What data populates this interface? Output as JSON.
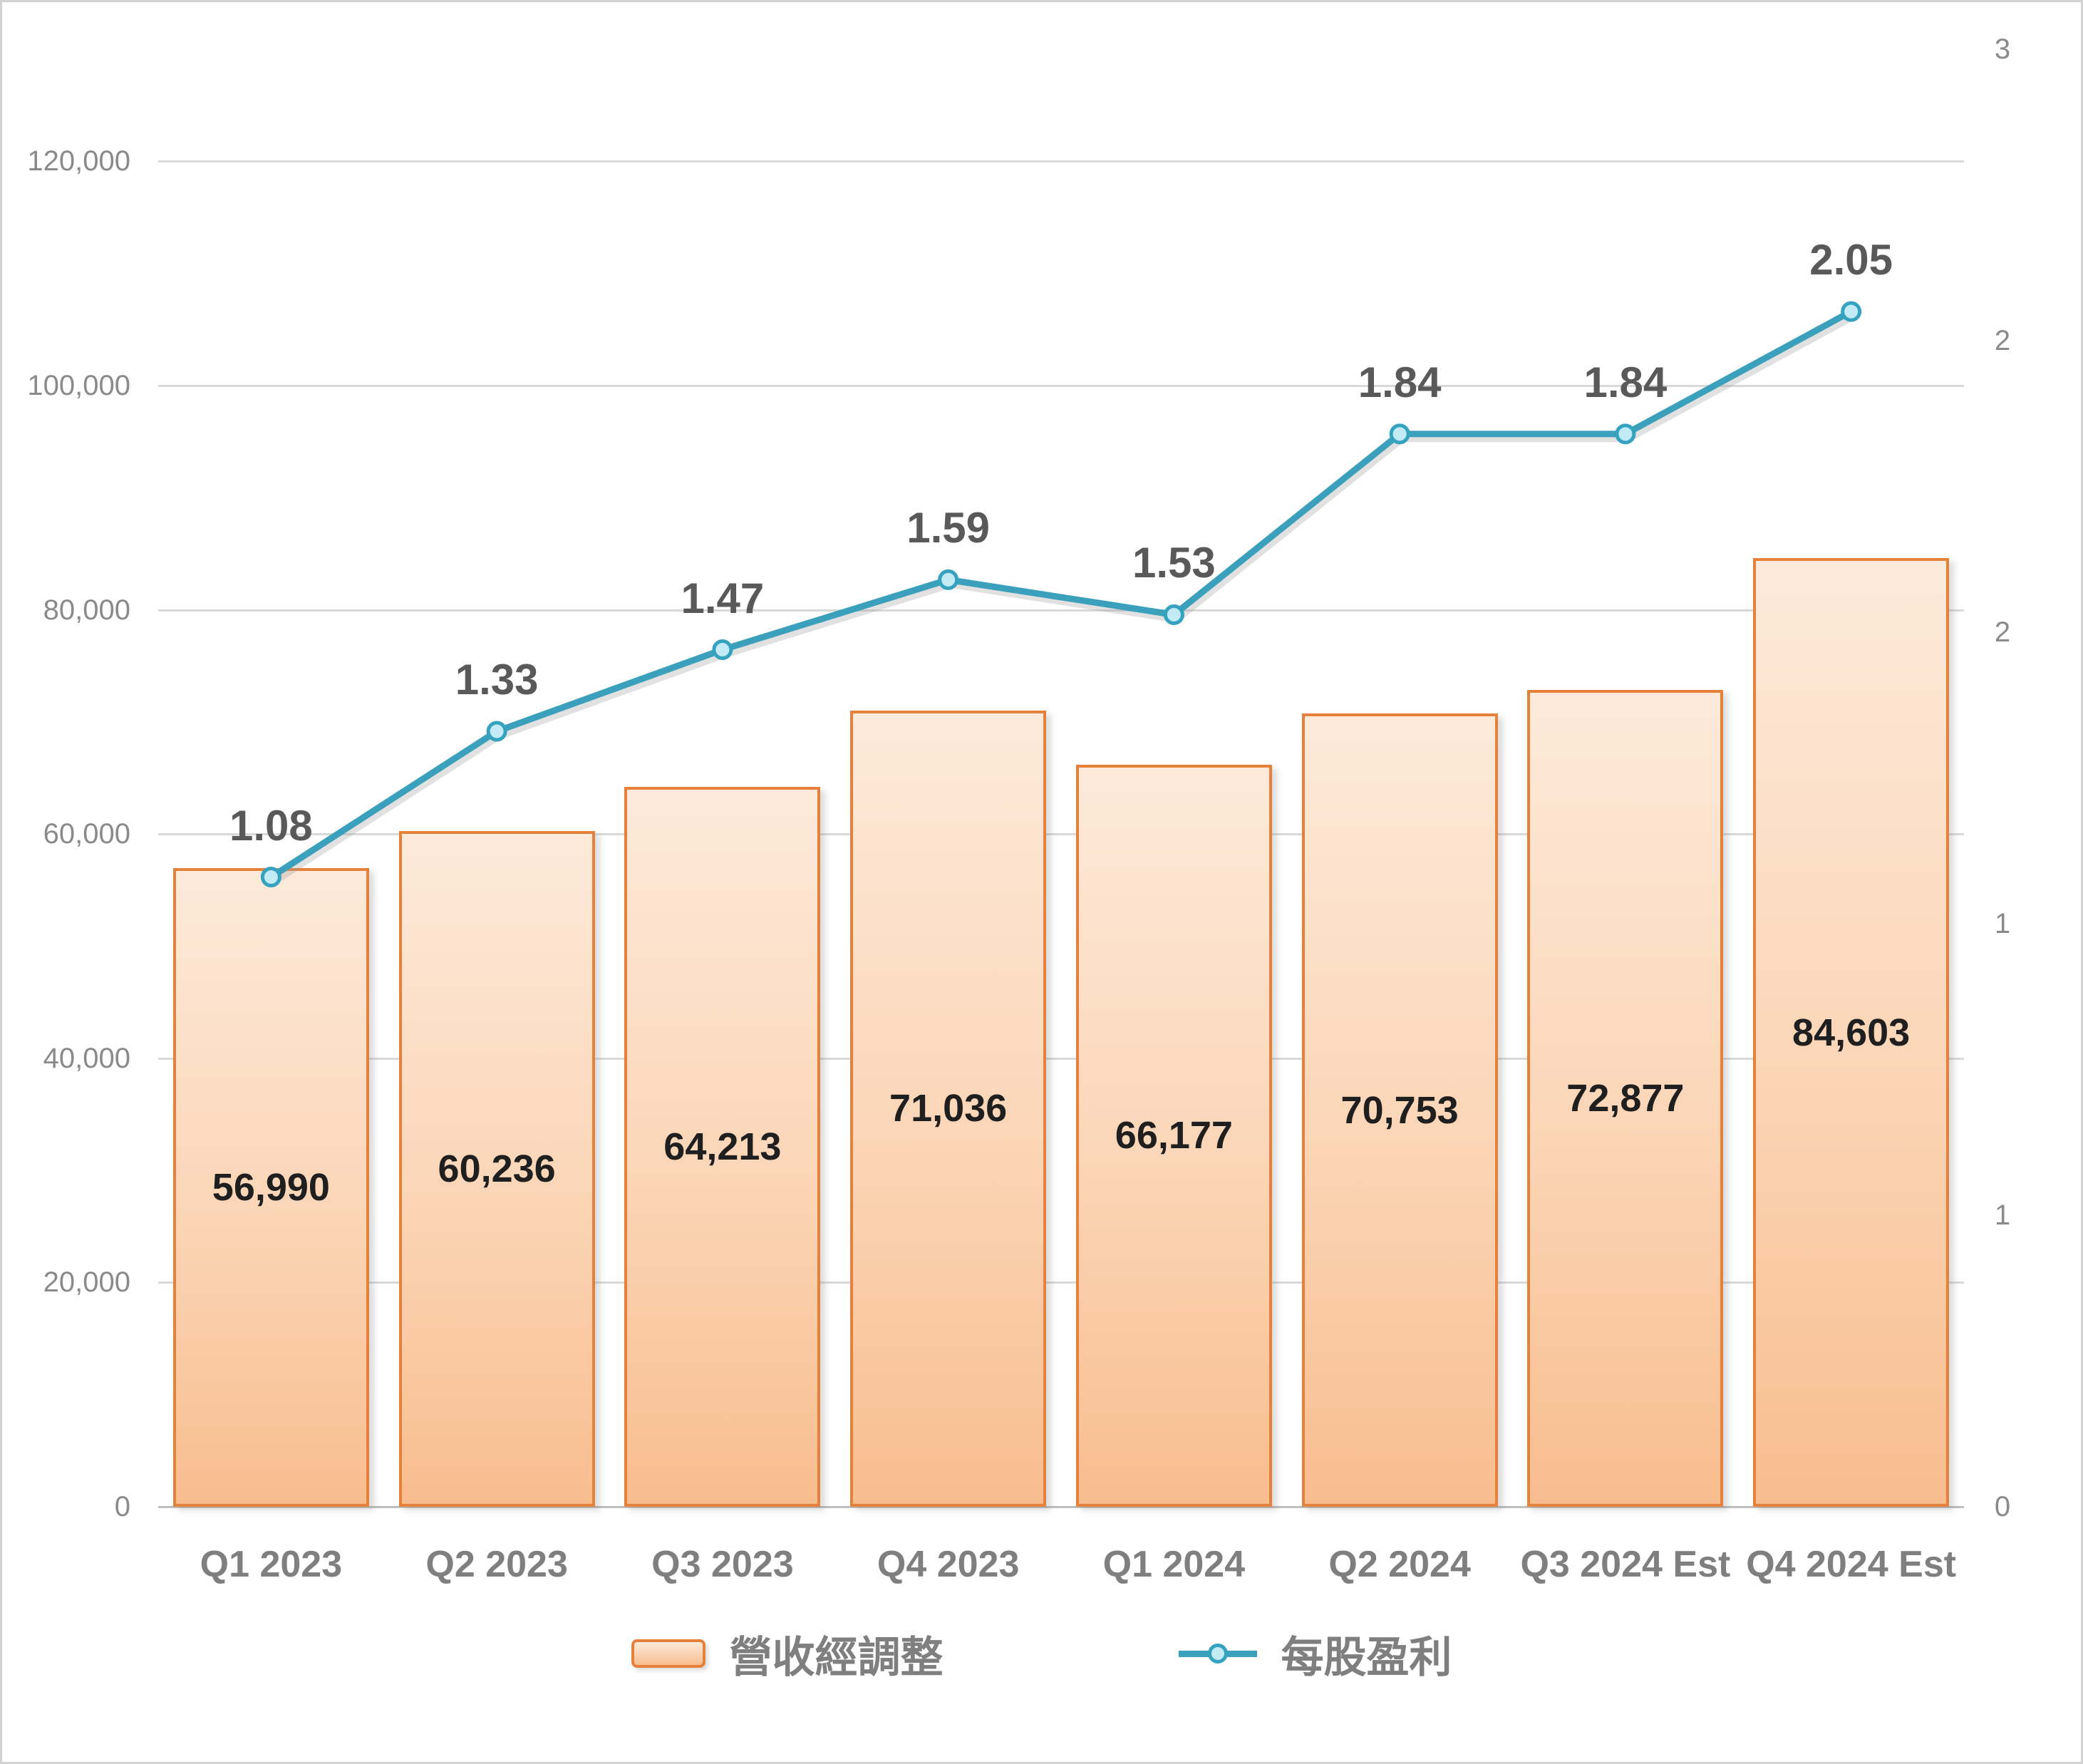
{
  "chart_data": {
    "type": "bar",
    "subtype": "combo-bar-line",
    "title": "",
    "categories": [
      "Q1 2023",
      "Q2 2023",
      "Q3 2023",
      "Q4 2023",
      "Q1 2024",
      "Q2 2024",
      "Q3 2024 Est",
      "Q4 2024 Est"
    ],
    "series": [
      {
        "name": "營收經調整",
        "type": "bar",
        "axis": "left",
        "values": [
          56990,
          60236,
          64213,
          71036,
          66177,
          70753,
          72877,
          84603
        ],
        "labels": [
          "56,990",
          "60,236",
          "64,213",
          "71,036",
          "66,177",
          "70,753",
          "72,877",
          "84,603"
        ]
      },
      {
        "name": "每股盈利",
        "type": "line",
        "axis": "right",
        "values": [
          1.08,
          1.33,
          1.47,
          1.59,
          1.53,
          1.84,
          1.84,
          2.05
        ],
        "labels": [
          "1.08",
          "1.33",
          "1.47",
          "1.59",
          "1.53",
          "1.84",
          "1.84",
          "2.05"
        ]
      }
    ],
    "left_axis": {
      "min": 0,
      "max": 130000,
      "tick_step": 20000,
      "tick_labels": [
        "0",
        "20,000",
        "40,000",
        "60,000",
        "80,000",
        "100,000",
        "120,000"
      ]
    },
    "right_axis": {
      "min": 0,
      "max": 2.5,
      "tick_step": 0.5,
      "tick_labels": [
        "0",
        "1",
        "1",
        "2",
        "2",
        "3"
      ]
    },
    "grid": true,
    "legend_position": "bottom",
    "colors": {
      "bar_fill_top": "#fdeada",
      "bar_fill_bottom": "#f8bd8e",
      "bar_border": "#e5813a",
      "line": "#3ba0bb",
      "marker_fill": "#c2ebf6",
      "marker_border": "#35a3bf",
      "bar_label": "#1f1f1f",
      "eps_label": "#595959",
      "axis_label": "#8a8a8a",
      "x_label": "#7f7f7f",
      "legend_text": "#7f7f7f",
      "gridline": "#d9d9d9",
      "axis_line": "#bfbfbf"
    }
  }
}
